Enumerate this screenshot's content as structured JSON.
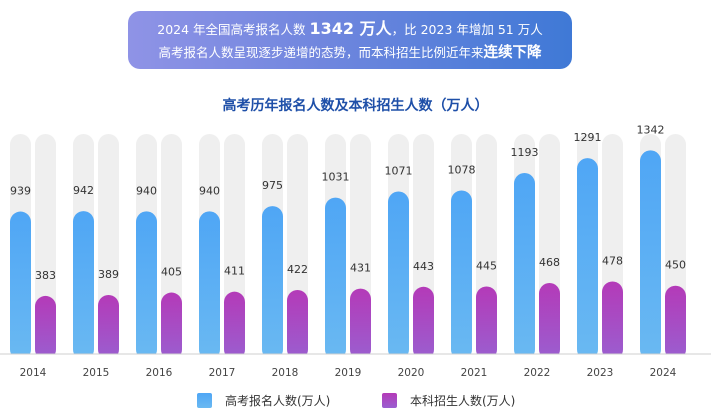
{
  "banner": {
    "line1_a": "2024 年全国高考报名人数 ",
    "line1_b": "1342 万人",
    "line1_c": "，比 2023 年增加 51 万人",
    "line2_a": "高考报名人数呈现逐步递增的态势，而本科招生比例近年来",
    "line2_b": "连续下降"
  },
  "chart_data": {
    "type": "bar",
    "title": "高考历年报名人数及本科招生人数（万人）",
    "categories": [
      "2014",
      "2015",
      "2016",
      "2017",
      "2018",
      "2019",
      "2020",
      "2021",
      "2022",
      "2023",
      "2024"
    ],
    "series": [
      {
        "name": "高考报名人数(万人)",
        "values": [
          939,
          942,
          940,
          940,
          975,
          1031,
          1071,
          1078,
          1193,
          1291,
          1342
        ],
        "color": "#5aaef3"
      },
      {
        "name": "本科招生人数(万人)",
        "values": [
          383,
          389,
          405,
          411,
          422,
          431,
          443,
          445,
          468,
          478,
          450
        ],
        "color": "#b147bf"
      }
    ],
    "ylim": [
      0,
      1450
    ],
    "legend_position": "bottom",
    "background_track_color": "#efefef"
  }
}
